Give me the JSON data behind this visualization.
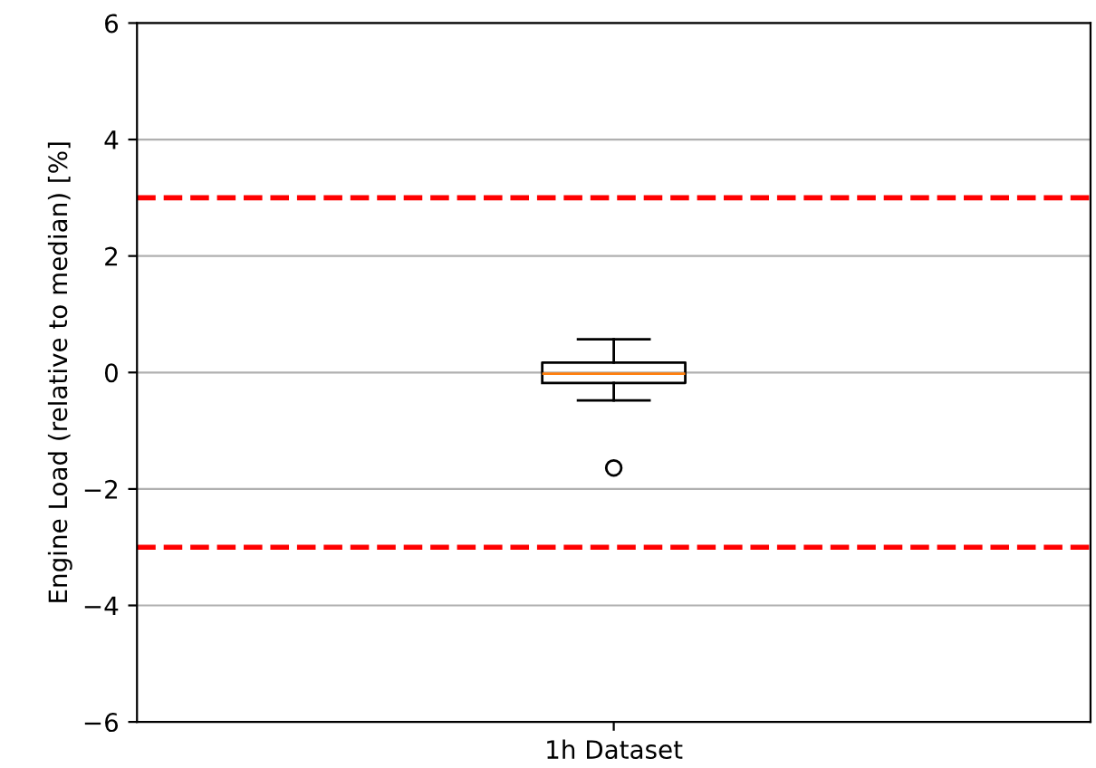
{
  "chart_data": {
    "type": "box",
    "ylabel": "Engine Load (relative to median) [%]",
    "categories": [
      "1h Dataset"
    ],
    "boxes": [
      {
        "low": -0.48,
        "q1": -0.18,
        "median": -0.02,
        "q3": 0.17,
        "high": 0.57,
        "outliers": [
          -1.64
        ]
      }
    ],
    "ylim": [
      -6,
      6
    ],
    "yticks": [
      -6,
      -4,
      -2,
      0,
      2,
      4,
      6
    ],
    "grid": "y",
    "ref_lines": [
      {
        "axis": "y",
        "value": 3,
        "color": "#ff0000",
        "line_style": "dashed"
      },
      {
        "axis": "y",
        "value": -3,
        "color": "#ff0000",
        "line_style": "dashed"
      }
    ]
  }
}
